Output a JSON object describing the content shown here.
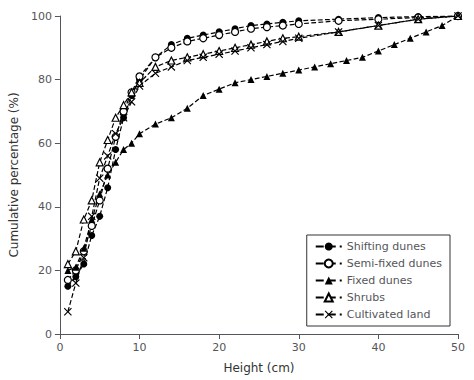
{
  "chart_data": {
    "type": "line",
    "title": "",
    "xlabel": "Height (cm)",
    "ylabel": "Cumulative percentage (%)",
    "xlim": [
      0,
      50
    ],
    "ylim": [
      0,
      100
    ],
    "xticks": [
      0,
      10,
      20,
      30,
      40,
      50
    ],
    "yticks": [
      0,
      20,
      40,
      60,
      80,
      100
    ],
    "grid": false,
    "legend": "lower right",
    "line_style": "dashed",
    "series": [
      {
        "name": "Shifting dunes",
        "color": "black",
        "marker": "circle",
        "x": [
          1,
          2,
          3,
          4,
          5,
          6,
          7,
          8,
          9,
          10,
          12,
          14,
          16,
          18,
          20,
          22,
          24,
          26,
          28,
          30,
          35,
          40,
          45,
          50
        ],
        "values": [
          15,
          18,
          22,
          31,
          37,
          46,
          58,
          68,
          75,
          80,
          87,
          91,
          93,
          94,
          95,
          96,
          97,
          97.5,
          98,
          98.5,
          99,
          99.5,
          99.8,
          100
        ]
      },
      {
        "name": "Semi-fixed dunes",
        "color": "black",
        "marker": "circle-open",
        "x": [
          1,
          2,
          3,
          4,
          5,
          6,
          7,
          8,
          9,
          10,
          12,
          14,
          16,
          18,
          20,
          22,
          24,
          26,
          28,
          30,
          35,
          40,
          45,
          50
        ],
        "values": [
          17,
          20,
          26,
          34,
          42,
          52,
          62,
          70,
          76,
          81,
          87,
          90,
          92,
          93,
          94,
          95,
          96,
          96.5,
          97,
          97.5,
          98.5,
          99,
          99.5,
          100
        ]
      },
      {
        "name": "Fixed dunes",
        "color": "black",
        "marker": "triangle",
        "x": [
          1,
          2,
          3,
          4,
          5,
          6,
          7,
          8,
          9,
          10,
          12,
          14,
          16,
          18,
          20,
          22,
          24,
          26,
          28,
          30,
          32,
          34,
          36,
          38,
          40,
          42,
          44,
          46,
          48,
          50
        ],
        "values": [
          20,
          21,
          27,
          36,
          44,
          50,
          54,
          58,
          60,
          63,
          66,
          68,
          71,
          75,
          77,
          79,
          80,
          81,
          82,
          83,
          84,
          85,
          86,
          87,
          89,
          91,
          93,
          95,
          97,
          100
        ]
      },
      {
        "name": "Shrubs",
        "color": "black",
        "marker": "triangle-open",
        "x": [
          1,
          2,
          3,
          4,
          5,
          6,
          7,
          8,
          9,
          10,
          12,
          14,
          16,
          18,
          20,
          22,
          24,
          26,
          28,
          30,
          35,
          40,
          45,
          50
        ],
        "values": [
          22,
          26,
          36,
          42,
          54,
          61,
          68,
          72,
          76,
          79,
          84,
          86,
          87,
          88,
          89,
          90,
          91,
          92,
          93,
          93.5,
          95,
          97,
          99,
          100
        ]
      },
      {
        "name": "Cultivated land",
        "color": "black",
        "marker": "x",
        "x": [
          1,
          2,
          3,
          4,
          5,
          6,
          7,
          8,
          9,
          10,
          12,
          14,
          16,
          18,
          20,
          22,
          24,
          26,
          28,
          30,
          35,
          40,
          45,
          50
        ],
        "values": [
          7,
          16,
          24,
          37,
          49,
          56,
          63,
          68,
          73,
          78,
          82,
          84,
          86,
          87,
          88,
          89,
          90,
          91,
          92,
          93,
          95,
          97,
          99,
          100
        ]
      }
    ]
  }
}
